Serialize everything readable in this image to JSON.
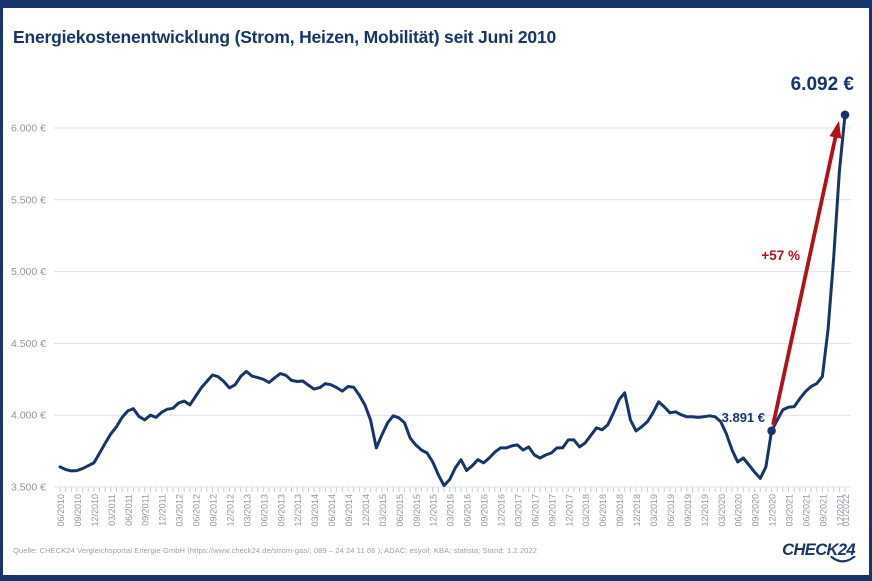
{
  "page": {
    "title": "Energiekostenentwicklung (Strom, Heizen, Mobilität) seit Juni 2010",
    "source": "Quelle: CHECK24 Vergleichsportal Energie GmbH (https://www.check24.de/strom-gas/; 089 – 24 24 11 66 ); ADAC; esyoil; KBA; statista; Stand: 1.2.2022",
    "logo_text": "CHECK24"
  },
  "colors": {
    "navy": "#17356b",
    "red": "#b11217",
    "grid": "#dce1e8",
    "tick": "#c5cbd3",
    "axis_text": "#8f97a1"
  },
  "annotations": {
    "end_value": "6.092 €",
    "start_value": "3.891 €",
    "percent_change": "+57 %"
  },
  "chart_data": {
    "type": "line",
    "title": "Energiekostenentwicklung (Strom, Heizen, Mobilität) seit Juni 2010",
    "xlabel": "",
    "ylabel": "",
    "unit": "€",
    "ylim": [
      3500,
      6100
    ],
    "grid": true,
    "legend": "none",
    "y_ticks": [
      {
        "value": 3500,
        "label": "3.500 €"
      },
      {
        "value": 4000,
        "label": "4.000 €"
      },
      {
        "value": 4500,
        "label": "4.500 €"
      },
      {
        "value": 5000,
        "label": "5.000 €"
      },
      {
        "value": 5500,
        "label": "5.500 €"
      },
      {
        "value": 6000,
        "label": "6.000 €"
      }
    ],
    "x_label_step": 3,
    "x_tick_labels": [
      "06/2010",
      "09/2010",
      "12/2010",
      "03/2011",
      "06/2011",
      "09/2011",
      "12/2011",
      "03/2012",
      "06/2012",
      "09/2012",
      "12/2012",
      "03/2013",
      "06/2013",
      "09/2013",
      "12/2013",
      "03/2014",
      "06/2014",
      "09/2014",
      "12/2014",
      "03/2015",
      "06/2015",
      "09/2015",
      "12/2015",
      "03/2016",
      "06/2016",
      "09/2016",
      "12/2016",
      "03/2017",
      "06/2017",
      "09/2017",
      "12/2017",
      "03/2018",
      "06/2018",
      "09/2018",
      "12/2018",
      "03/2019",
      "06/2019",
      "09/2019",
      "12/2019",
      "03/2020",
      "06/2020",
      "09/2020",
      "12/2020",
      "03/2021",
      "06/2021",
      "09/2021",
      "12/2021",
      "01/2022"
    ],
    "series": [
      {
        "name": "Energiekosten (Strom, Heizen, Mobilität)",
        "start_month": "06/2010",
        "end_month": "01/2022",
        "values": [
          3640,
          3622,
          3612,
          3614,
          3628,
          3648,
          3668,
          3735,
          3805,
          3870,
          3920,
          3985,
          4030,
          4045,
          3990,
          3968,
          4000,
          3985,
          4020,
          4042,
          4048,
          4085,
          4098,
          4072,
          4130,
          4190,
          4235,
          4280,
          4268,
          4235,
          4190,
          4212,
          4270,
          4305,
          4272,
          4262,
          4250,
          4228,
          4260,
          4290,
          4278,
          4242,
          4235,
          4238,
          4208,
          4182,
          4192,
          4220,
          4212,
          4192,
          4168,
          4200,
          4195,
          4140,
          4070,
          3965,
          3772,
          3863,
          3947,
          3996,
          3982,
          3947,
          3842,
          3793,
          3758,
          3737,
          3675,
          3584,
          3510,
          3552,
          3633,
          3690,
          3615,
          3648,
          3690,
          3668,
          3702,
          3744,
          3772,
          3772,
          3786,
          3793,
          3758,
          3779,
          3723,
          3702,
          3723,
          3737,
          3772,
          3772,
          3828,
          3828,
          3779,
          3807,
          3860,
          3912,
          3898,
          3933,
          4017,
          4108,
          4156,
          3968,
          3891,
          3919,
          3954,
          4017,
          4093,
          4058,
          4017,
          4024,
          4003,
          3989,
          3989,
          3985,
          3989,
          3996,
          3989,
          3954,
          3870,
          3758,
          3674,
          3702,
          3653,
          3604,
          3560,
          3640,
          3891,
          3965,
          4038,
          4055,
          4060,
          4115,
          4165,
          4200,
          4220,
          4270,
          4600,
          5100,
          5700,
          6092
        ]
      }
    ],
    "marked_points": [
      {
        "index": 126,
        "label": "3.891 €",
        "value": 3891
      },
      {
        "index": 139,
        "label": "6.092 €",
        "value": 6092
      }
    ],
    "arrow": {
      "from_index": 126,
      "to_index": 139,
      "label": "+57 %"
    }
  }
}
